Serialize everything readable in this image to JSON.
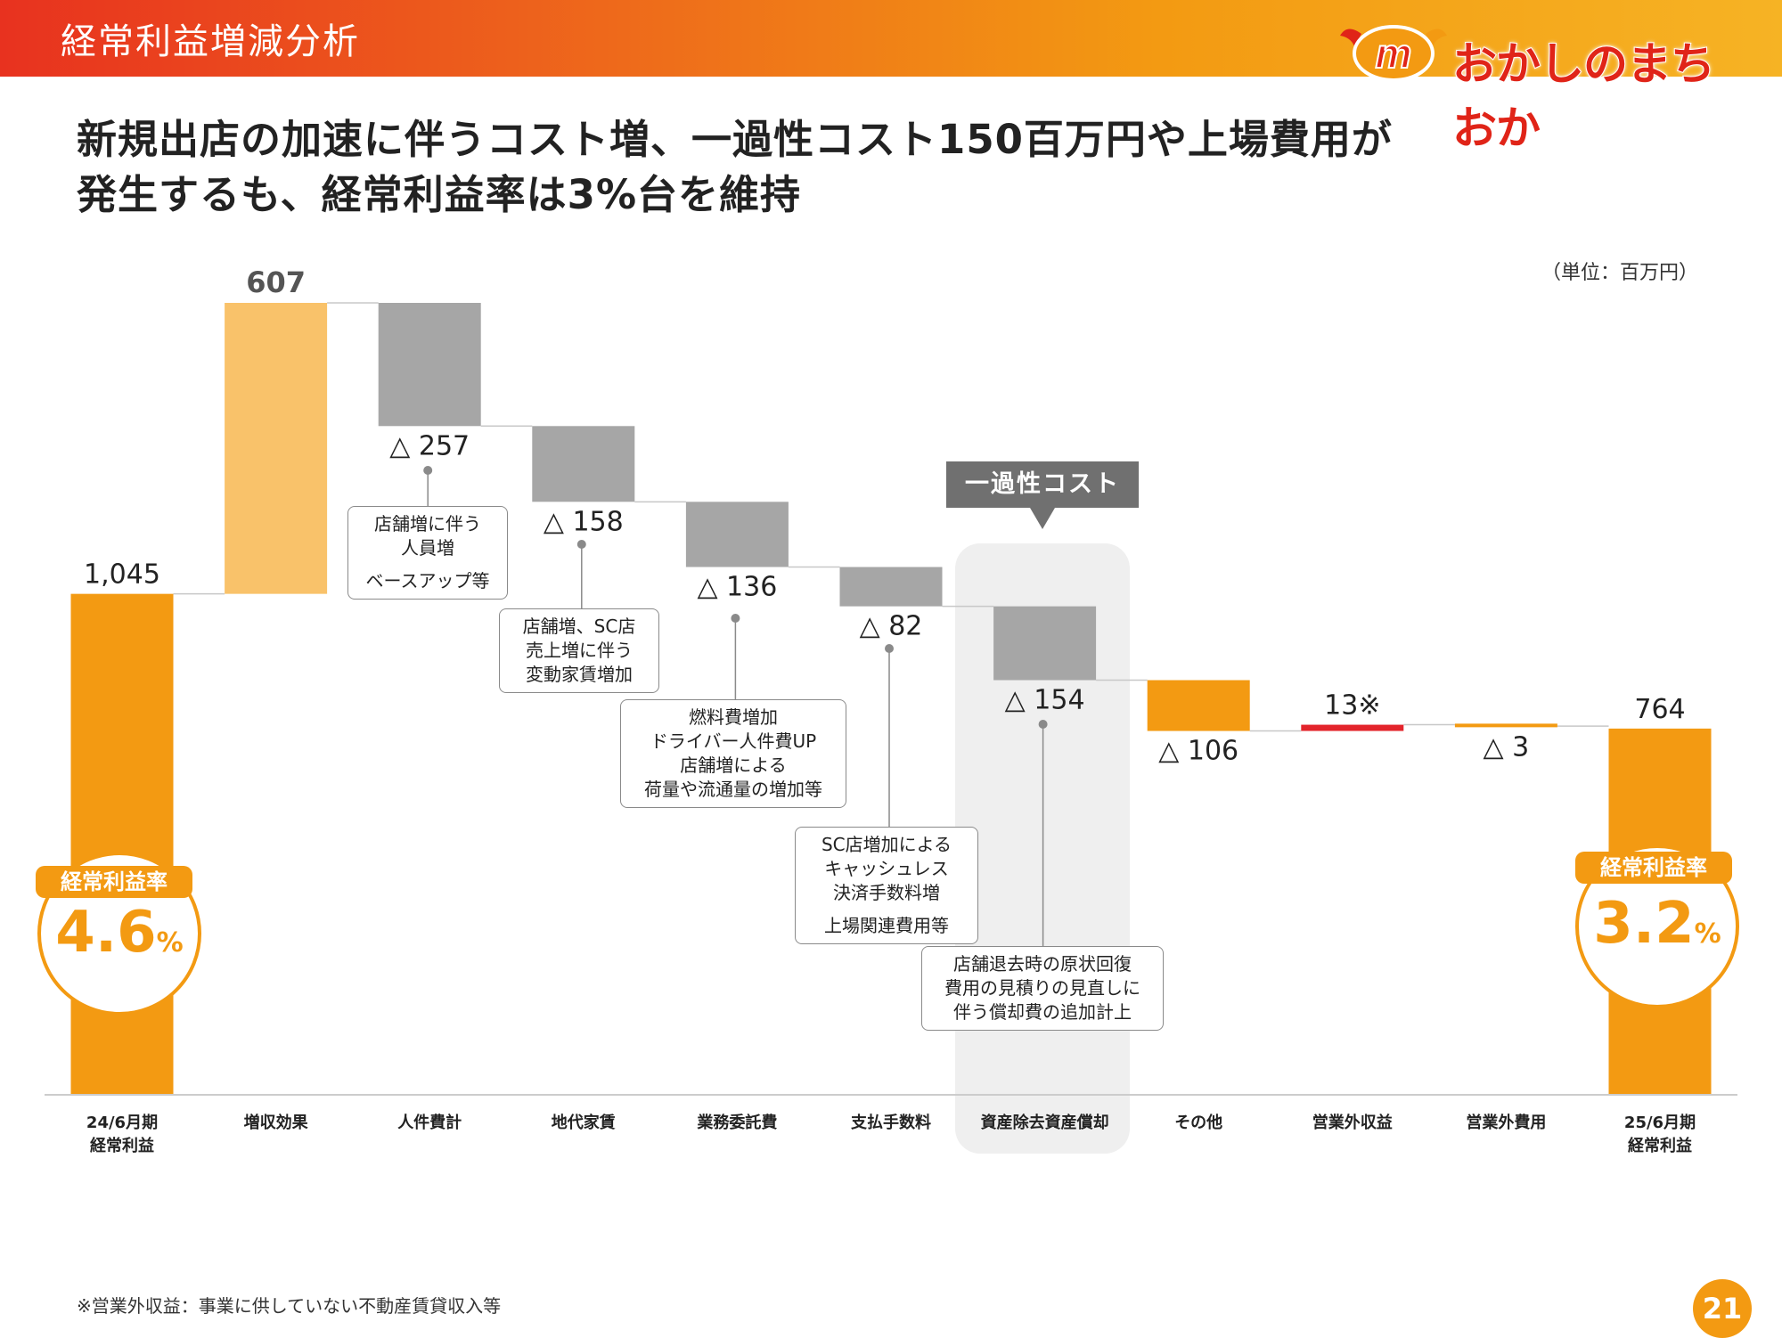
{
  "header": {
    "title": "経常利益増減分析"
  },
  "logo": {
    "text": "おかしのまちおか"
  },
  "headline": {
    "line1": "新規出店の加速に伴うコスト増、一過性コスト150百万円や上場費用が",
    "line2": "発生するも、経常利益率は3%台を維持"
  },
  "unit_label": "（単位：百万円）",
  "chart_data": {
    "type": "bar",
    "subtype": "waterfall",
    "categories": [
      [
        "24/6月期",
        "経常利益"
      ],
      [
        "増収効果"
      ],
      [
        "人件費計"
      ],
      [
        "地代家賃"
      ],
      [
        "業務委託費"
      ],
      [
        "支払手数料"
      ],
      [
        "資産除去資産償却"
      ],
      [
        "その他"
      ],
      [
        "営業外収益"
      ],
      [
        "営業外費用"
      ],
      [
        "25/6月期",
        "経常利益"
      ]
    ],
    "values": [
      1045,
      607,
      -257,
      -158,
      -136,
      -82,
      -154,
      -106,
      13,
      -3,
      764
    ],
    "value_labels": [
      "1,045",
      "607",
      "△ 257",
      "△ 158",
      "△ 136",
      "△ 82",
      "△ 154",
      "△ 106",
      "13※",
      "△ 3",
      "764"
    ],
    "bar_kinds": [
      "total",
      "increase",
      "decrease",
      "decrease",
      "decrease",
      "decrease",
      "decrease",
      "decrease",
      "increase",
      "decrease",
      "total"
    ],
    "ylim": [
      0,
      1652
    ]
  },
  "colors": {
    "total": "#f39a12",
    "increase_sales": "#f9c26a",
    "cost": "#a6a6a6",
    "other": "#f39a12",
    "non_op_income": "#e3242b",
    "non_op_expense": "#f39a12",
    "connector": "#c8c8c8",
    "highlight_bg": "#efefef"
  },
  "rates": {
    "left": {
      "label": "経常利益率",
      "value": "4.6",
      "unit": "%"
    },
    "right": {
      "label": "経常利益率",
      "value": "3.2",
      "unit": "%"
    }
  },
  "one_time": {
    "label": "一過性コスト"
  },
  "notes": {
    "personnel": [
      "店舗増に伴う",
      "人員増",
      "ベースアップ等"
    ],
    "rent": [
      "店舗増、SC店",
      "売上増に伴う",
      "変動家賃増加"
    ],
    "outsourcing": [
      "燃料費増加",
      "ドライバー人件費UP",
      "店舗増による",
      "荷量や流通量の増加等"
    ],
    "fees": [
      "SC店増加による",
      "キャッシュレス",
      "決済手数料増",
      "上場関連費用等"
    ],
    "asset": [
      "店舗退去時の原状回復",
      "費用の見積りの見直しに",
      "伴う償却費の追加計上"
    ]
  },
  "footnote": "※営業外収益：事業に供していない不動産賃貸収入等",
  "page_number": "21"
}
